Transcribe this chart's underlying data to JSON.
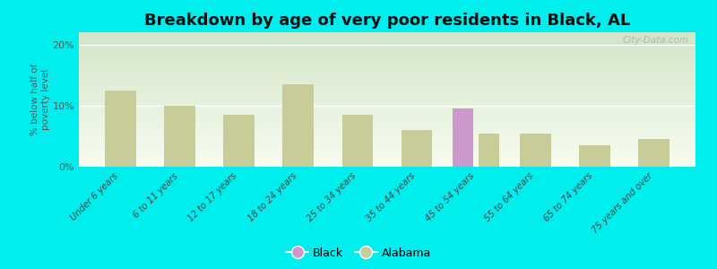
{
  "title": "Breakdown by age of very poor residents in Black, AL",
  "categories": [
    "Under 6 years",
    "6 to 11 years",
    "12 to 17 years",
    "18 to 24 years",
    "25 to 34 years",
    "35 to 44 years",
    "45 to 54 years",
    "55 to 64 years",
    "65 to 74 years",
    "75 years and over"
  ],
  "alabama_values": [
    12.5,
    10.0,
    8.5,
    13.5,
    8.5,
    6.0,
    5.5,
    5.5,
    3.5,
    4.5
  ],
  "black_values": [
    0,
    0,
    0,
    0,
    0,
    0,
    9.5,
    0,
    0,
    0
  ],
  "alabama_color": "#c8cc99",
  "black_color": "#cc99cc",
  "background_color": "#00eeee",
  "ylabel": "% below half of\npoverty level",
  "ylim": [
    0,
    22
  ],
  "yticks": [
    0,
    10,
    20
  ],
  "ytick_labels": [
    "0%",
    "10%",
    "20%"
  ],
  "bar_width": 0.35,
  "title_fontsize": 13,
  "watermark": "City-Data.com"
}
